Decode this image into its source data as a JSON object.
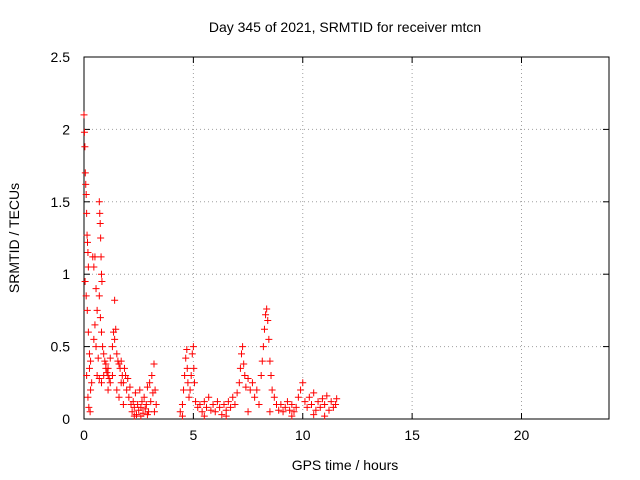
{
  "chart_data": {
    "type": "scatter",
    "title": "Day 345 of 2021, SRMTID for receiver mtcn",
    "xlabel": "GPS time / hours",
    "ylabel": "SRMTID / TECUs",
    "xlim": [
      0,
      24
    ],
    "ylim": [
      0,
      2.5
    ],
    "xticks": [
      0,
      5,
      10,
      15,
      20
    ],
    "yticks": [
      0,
      0.5,
      1,
      1.5,
      2,
      2.5
    ],
    "xtick_labels": [
      "0",
      "5",
      "10",
      "15",
      "20"
    ],
    "ytick_labels": [
      "0",
      "0.5",
      "1",
      "1.5",
      "2",
      "2.5"
    ],
    "grid": true,
    "marker": "+",
    "color": "#ff0000",
    "series": [
      {
        "name": "SRMTID",
        "points": [
          [
            0.0,
            2.1
          ],
          [
            0.02,
            1.98
          ],
          [
            0.04,
            1.88
          ],
          [
            0.06,
            1.7
          ],
          [
            0.08,
            1.62
          ],
          [
            0.1,
            1.55
          ],
          [
            0.12,
            1.42
          ],
          [
            0.14,
            1.27
          ],
          [
            0.16,
            1.22
          ],
          [
            0.18,
            1.15
          ],
          [
            0.2,
            1.05
          ],
          [
            0.05,
            0.95
          ],
          [
            0.1,
            0.85
          ],
          [
            0.15,
            0.75
          ],
          [
            0.2,
            0.6
          ],
          [
            0.25,
            0.45
          ],
          [
            0.3,
            0.4
          ],
          [
            0.12,
            0.3
          ],
          [
            0.18,
            0.15
          ],
          [
            0.22,
            0.08
          ],
          [
            0.28,
            0.05
          ],
          [
            0.35,
            0.25
          ],
          [
            0.4,
            1.12
          ],
          [
            0.45,
            1.05
          ],
          [
            0.5,
            1.12
          ],
          [
            0.55,
            0.9
          ],
          [
            0.6,
            0.75
          ],
          [
            0.5,
            0.65
          ],
          [
            0.45,
            0.55
          ],
          [
            0.55,
            0.5
          ],
          [
            0.65,
            0.42
          ],
          [
            0.7,
            1.5
          ],
          [
            0.72,
            1.42
          ],
          [
            0.74,
            1.35
          ],
          [
            0.76,
            1.25
          ],
          [
            0.78,
            1.12
          ],
          [
            0.8,
            1.0
          ],
          [
            0.82,
            0.95
          ],
          [
            0.7,
            0.85
          ],
          [
            0.75,
            0.7
          ],
          [
            0.8,
            0.6
          ],
          [
            0.85,
            0.5
          ],
          [
            0.9,
            0.45
          ],
          [
            0.95,
            0.4
          ],
          [
            1.0,
            0.35
          ],
          [
            1.05,
            0.32
          ],
          [
            1.1,
            0.3
          ],
          [
            1.15,
            0.28
          ],
          [
            0.6,
            0.3
          ],
          [
            0.7,
            0.28
          ],
          [
            0.8,
            0.25
          ],
          [
            0.9,
            0.3
          ],
          [
            1.0,
            0.38
          ],
          [
            1.1,
            0.35
          ],
          [
            1.2,
            0.42
          ],
          [
            1.3,
            0.5
          ],
          [
            1.35,
            0.6
          ],
          [
            1.4,
            0.55
          ],
          [
            1.45,
            0.62
          ],
          [
            1.4,
            0.82
          ],
          [
            1.5,
            0.45
          ],
          [
            1.55,
            0.4
          ],
          [
            1.6,
            0.38
          ],
          [
            1.65,
            0.35
          ],
          [
            1.7,
            0.4
          ],
          [
            1.75,
            0.3
          ],
          [
            1.8,
            0.25
          ],
          [
            1.85,
            0.35
          ],
          [
            1.9,
            0.3
          ],
          [
            1.95,
            0.2
          ],
          [
            2.0,
            0.28
          ],
          [
            2.05,
            0.15
          ],
          [
            2.1,
            0.22
          ],
          [
            1.5,
            0.2
          ],
          [
            1.6,
            0.15
          ],
          [
            1.7,
            0.25
          ],
          [
            1.8,
            0.1
          ],
          [
            1.3,
            0.3
          ],
          [
            1.2,
            0.25
          ],
          [
            1.1,
            0.2
          ],
          [
            0.3,
            0.2
          ],
          [
            0.25,
            0.35
          ],
          [
            2.15,
            0.1
          ],
          [
            2.2,
            0.05
          ],
          [
            2.25,
            0.12
          ],
          [
            2.3,
            0.08
          ],
          [
            2.35,
            0.18
          ],
          [
            2.4,
            0.03
          ],
          [
            2.45,
            0.1
          ],
          [
            2.5,
            0.06
          ],
          [
            2.55,
            0.2
          ],
          [
            2.6,
            0.08
          ],
          [
            2.65,
            0.12
          ],
          [
            2.7,
            0.04
          ],
          [
            2.75,
            0.15
          ],
          [
            2.8,
            0.07
          ],
          [
            2.85,
            0.1
          ],
          [
            2.9,
            0.22
          ],
          [
            2.95,
            0.05
          ],
          [
            3.0,
            0.25
          ],
          [
            3.05,
            0.12
          ],
          [
            3.1,
            0.3
          ],
          [
            3.15,
            0.18
          ],
          [
            3.2,
            0.38
          ],
          [
            3.25,
            0.2
          ],
          [
            3.3,
            0.1
          ],
          [
            3.22,
            0.05
          ],
          [
            2.3,
            0.02
          ],
          [
            2.6,
            0.02
          ],
          [
            2.9,
            0.03
          ],
          [
            4.4,
            0.05
          ],
          [
            4.5,
            0.1
          ],
          [
            4.55,
            0.2
          ],
          [
            4.6,
            0.3
          ],
          [
            4.65,
            0.42
          ],
          [
            4.7,
            0.48
          ],
          [
            4.72,
            0.35
          ],
          [
            4.75,
            0.25
          ],
          [
            4.8,
            0.15
          ],
          [
            4.85,
            0.2
          ],
          [
            4.9,
            0.3
          ],
          [
            4.95,
            0.45
          ],
          [
            5.0,
            0.5
          ],
          [
            5.02,
            0.35
          ],
          [
            5.05,
            0.25
          ],
          [
            5.1,
            0.12
          ],
          [
            5.2,
            0.08
          ],
          [
            5.3,
            0.1
          ],
          [
            5.4,
            0.05
          ],
          [
            5.5,
            0.12
          ],
          [
            5.6,
            0.08
          ],
          [
            5.7,
            0.15
          ],
          [
            5.8,
            0.06
          ],
          [
            5.9,
            0.1
          ],
          [
            6.0,
            0.05
          ],
          [
            6.1,
            0.12
          ],
          [
            6.2,
            0.08
          ],
          [
            6.3,
            0.03
          ],
          [
            6.4,
            0.1
          ],
          [
            6.5,
            0.06
          ],
          [
            6.6,
            0.12
          ],
          [
            6.7,
            0.08
          ],
          [
            6.8,
            0.15
          ],
          [
            6.9,
            0.1
          ],
          [
            7.0,
            0.18
          ],
          [
            7.1,
            0.25
          ],
          [
            7.15,
            0.35
          ],
          [
            7.2,
            0.45
          ],
          [
            7.25,
            0.5
          ],
          [
            7.3,
            0.38
          ],
          [
            7.35,
            0.3
          ],
          [
            7.4,
            0.22
          ],
          [
            7.5,
            0.28
          ],
          [
            7.6,
            0.2
          ],
          [
            7.7,
            0.25
          ],
          [
            7.8,
            0.15
          ],
          [
            7.9,
            0.2
          ],
          [
            8.0,
            0.1
          ],
          [
            8.1,
            0.3
          ],
          [
            8.15,
            0.4
          ],
          [
            8.2,
            0.5
          ],
          [
            8.25,
            0.62
          ],
          [
            8.3,
            0.72
          ],
          [
            8.35,
            0.76
          ],
          [
            8.4,
            0.68
          ],
          [
            8.45,
            0.55
          ],
          [
            8.5,
            0.4
          ],
          [
            8.55,
            0.3
          ],
          [
            8.6,
            0.2
          ],
          [
            8.7,
            0.15
          ],
          [
            8.8,
            0.1
          ],
          [
            8.9,
            0.06
          ],
          [
            9.0,
            0.1
          ],
          [
            9.1,
            0.05
          ],
          [
            9.2,
            0.08
          ],
          [
            9.3,
            0.12
          ],
          [
            9.4,
            0.06
          ],
          [
            9.5,
            0.1
          ],
          [
            9.6,
            0.05
          ],
          [
            9.7,
            0.08
          ],
          [
            9.8,
            0.15
          ],
          [
            9.9,
            0.2
          ],
          [
            10.0,
            0.25
          ],
          [
            10.1,
            0.12
          ],
          [
            10.2,
            0.08
          ],
          [
            10.3,
            0.15
          ],
          [
            10.4,
            0.1
          ],
          [
            10.5,
            0.18
          ],
          [
            10.6,
            0.06
          ],
          [
            10.7,
            0.12
          ],
          [
            10.8,
            0.08
          ],
          [
            10.9,
            0.14
          ],
          [
            11.0,
            0.1
          ],
          [
            11.1,
            0.16
          ],
          [
            11.2,
            0.06
          ],
          [
            11.3,
            0.12
          ],
          [
            11.4,
            0.08
          ],
          [
            11.5,
            0.1
          ],
          [
            11.55,
            0.14
          ],
          [
            4.5,
            0.02
          ],
          [
            5.5,
            0.02
          ],
          [
            6.5,
            0.02
          ],
          [
            7.5,
            0.05
          ],
          [
            8.5,
            0.05
          ],
          [
            9.5,
            0.02
          ],
          [
            10.5,
            0.03
          ],
          [
            11.0,
            0.02
          ]
        ]
      }
    ]
  }
}
